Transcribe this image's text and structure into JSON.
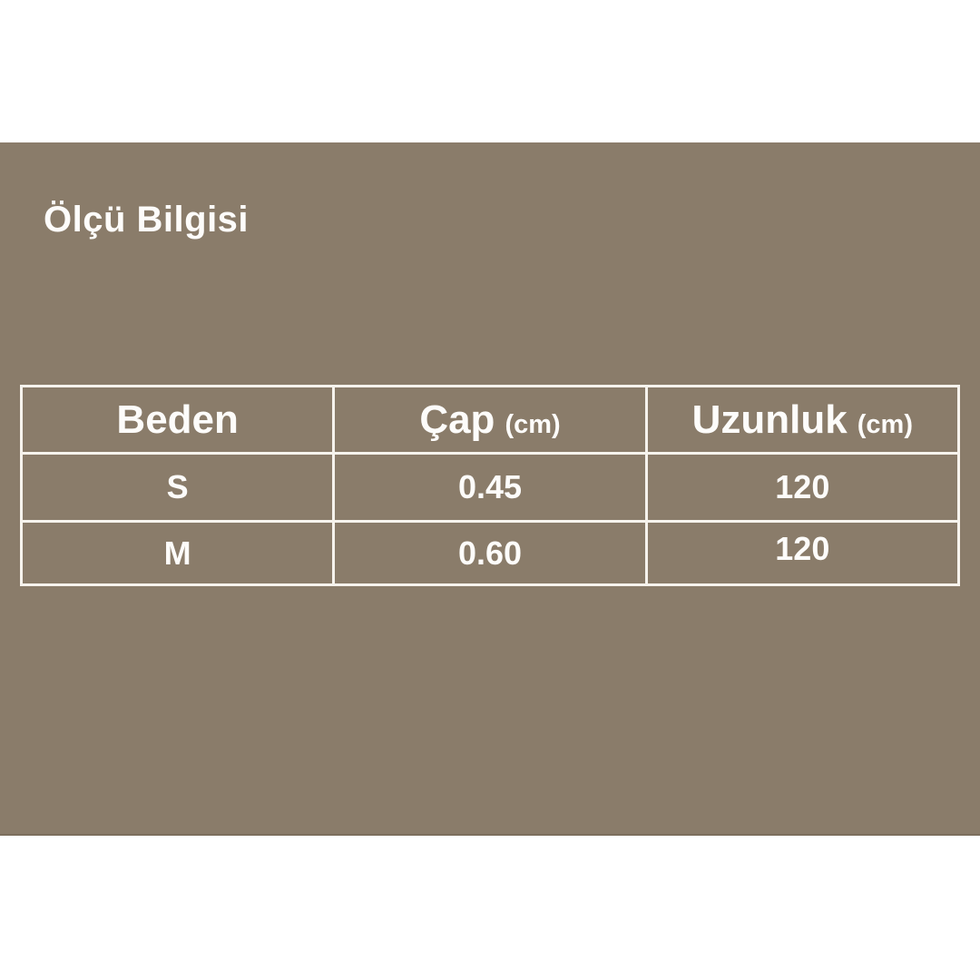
{
  "title": "Ölçü Bilgisi",
  "table": {
    "columns": [
      {
        "label": "Beden",
        "unit": ""
      },
      {
        "label": "Çap",
        "unit": "(cm)"
      },
      {
        "label": "Uzunluk",
        "unit": "(cm)"
      }
    ],
    "rows": [
      {
        "size": "S",
        "diameter": "0.45",
        "length": "120"
      },
      {
        "size": "M",
        "diameter": "0.60",
        "length": "120"
      }
    ]
  },
  "colors": {
    "page_background": "#FFFFFF",
    "panel_background": "#8A7C6A",
    "panel_bottom_edge": "#7C6E5D",
    "table_border": "#F6F3ED",
    "text": "#FDFCFA"
  },
  "chart_data": {
    "type": "table",
    "title": "Ölçü Bilgisi",
    "columns": [
      "Beden",
      "Çap (cm)",
      "Uzunluk (cm)"
    ],
    "rows": [
      [
        "S",
        "0.45",
        "120"
      ],
      [
        "M",
        "0.60",
        "120"
      ]
    ],
    "legend_position": "none",
    "grid": true
  }
}
